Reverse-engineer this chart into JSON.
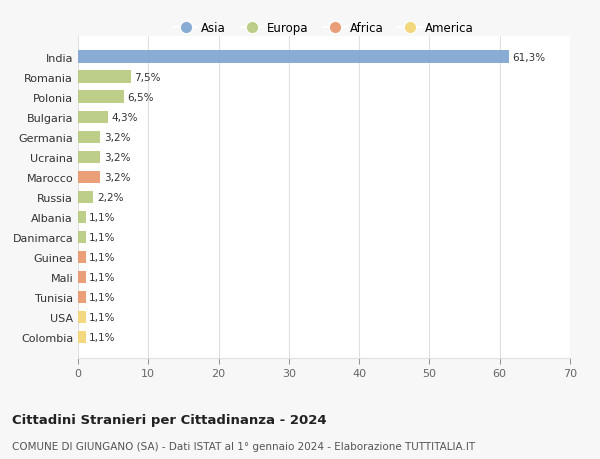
{
  "countries": [
    "India",
    "Romania",
    "Polonia",
    "Bulgaria",
    "Germania",
    "Ucraina",
    "Marocco",
    "Russia",
    "Albania",
    "Danimarca",
    "Guinea",
    "Mali",
    "Tunisia",
    "USA",
    "Colombia"
  ],
  "values": [
    61.3,
    7.5,
    6.5,
    4.3,
    3.2,
    3.2,
    3.2,
    2.2,
    1.1,
    1.1,
    1.1,
    1.1,
    1.1,
    1.1,
    1.1
  ],
  "labels": [
    "61,3%",
    "7,5%",
    "6,5%",
    "4,3%",
    "3,2%",
    "3,2%",
    "3,2%",
    "2,2%",
    "1,1%",
    "1,1%",
    "1,1%",
    "1,1%",
    "1,1%",
    "1,1%",
    "1,1%"
  ],
  "continents": [
    "Asia",
    "Europa",
    "Europa",
    "Europa",
    "Europa",
    "Europa",
    "Africa",
    "Europa",
    "Europa",
    "Europa",
    "Africa",
    "Africa",
    "Africa",
    "America",
    "America"
  ],
  "colors": {
    "Asia": "#7ba3d0",
    "Europa": "#b5c97a",
    "Africa": "#e8956b",
    "America": "#f2d472"
  },
  "xlim": [
    0,
    70
  ],
  "xticks": [
    0,
    10,
    20,
    30,
    40,
    50,
    60,
    70
  ],
  "title": "Cittadini Stranieri per Cittadinanza - 2024",
  "subtitle": "COMUNE DI GIUNGANO (SA) - Dati ISTAT al 1° gennaio 2024 - Elaborazione TUTTITALIA.IT",
  "background_color": "#f7f7f7",
  "plot_background": "#ffffff",
  "grid_color": "#e0e0e0",
  "legend_entries": [
    "Asia",
    "Europa",
    "Africa",
    "America"
  ]
}
